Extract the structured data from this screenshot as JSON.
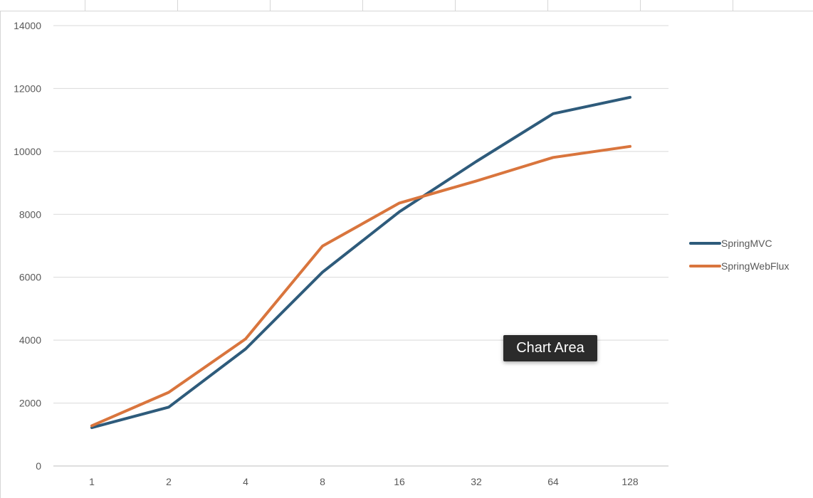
{
  "tooltip": {
    "label": "Chart Area"
  },
  "chart_data": {
    "type": "line",
    "categories": [
      "1",
      "2",
      "4",
      "8",
      "16",
      "32",
      "64",
      "128"
    ],
    "series": [
      {
        "name": "SpringMVC",
        "color": "#2e5b7b",
        "values": [
          1220,
          1870,
          3720,
          6160,
          8080,
          9680,
          11200,
          11720
        ]
      },
      {
        "name": "SpringWebFlux",
        "color": "#d9753d",
        "values": [
          1280,
          2340,
          4040,
          6990,
          8360,
          9060,
          9810,
          10160
        ]
      }
    ],
    "ylim": [
      0,
      14000
    ],
    "yticks": [
      0,
      2000,
      4000,
      6000,
      8000,
      10000,
      12000,
      14000
    ],
    "grid": true,
    "legend": "right"
  }
}
